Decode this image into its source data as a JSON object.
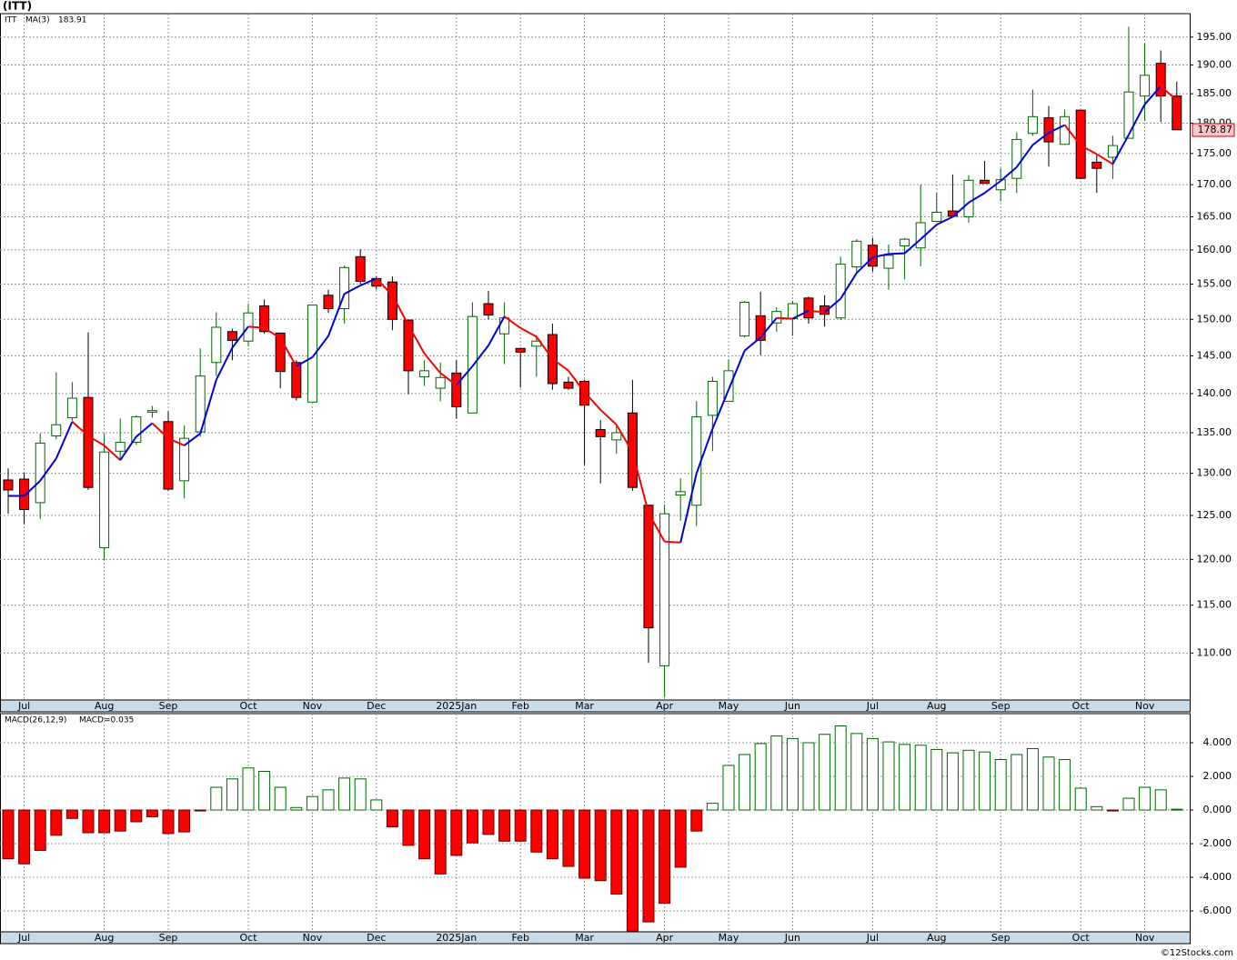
{
  "header": "(ITT)",
  "footer": "©12Stocks.com",
  "chart_data": [
    {
      "type": "candlestick",
      "title": "ITT",
      "log_scale": true,
      "grid": true,
      "categories": [
        null,
        "Jul",
        null,
        null,
        null,
        null,
        "Aug",
        null,
        null,
        null,
        "Sep",
        null,
        null,
        null,
        null,
        "Oct",
        null,
        null,
        null,
        "Nov",
        null,
        null,
        null,
        "Dec",
        null,
        null,
        null,
        null,
        "2025Jan",
        null,
        null,
        null,
        "Feb",
        null,
        null,
        null,
        "Mar",
        null,
        null,
        null,
        null,
        "Apr",
        null,
        null,
        null,
        "May",
        null,
        null,
        null,
        "Jun",
        null,
        null,
        null,
        null,
        "Jul",
        null,
        null,
        null,
        "Aug",
        null,
        null,
        null,
        "Sep",
        null,
        null,
        null,
        null,
        "Oct",
        null,
        null,
        null,
        "Nov",
        null,
        null
      ],
      "open": [
        129.2,
        129.3,
        126.5,
        134.6,
        136.9,
        139.5,
        121.3,
        132.7,
        133.8,
        137.6,
        136.4,
        129.1,
        135.1,
        144.1,
        148.3,
        147.0,
        151.9,
        148.1,
        144.1,
        138.9,
        153.4,
        151.5,
        159.0,
        155.8,
        155.3,
        149.9,
        142.2,
        140.7,
        142.7,
        137.5,
        152.2,
        148.0,
        146.0,
        146.3,
        147.9,
        141.5,
        141.6,
        135.4,
        134.1,
        137.5,
        126.2,
        108.7,
        127.4,
        126.2,
        137.2,
        139.0,
        147.7,
        150.5,
        149.5,
        150.1,
        153.0,
        151.9,
        150.2,
        157.5,
        160.7,
        157.3,
        160.6,
        160.3,
        164.3,
        165.9,
        165.0,
        170.7,
        169.2,
        171.0,
        178.3,
        180.9,
        176.5,
        182.2,
        173.6,
        174.4,
        177.5,
        184.6,
        190.3,
        184.6
      ],
      "high": [
        130.6,
        130.1,
        134.9,
        142.8,
        141.5,
        148.2,
        134.9,
        136.8,
        137.2,
        138.4,
        137.7,
        135.9,
        146.0,
        151.0,
        148.7,
        152.2,
        152.8,
        148.1,
        144.4,
        152.0,
        154.2,
        157.7,
        160.1,
        156.1,
        156.1,
        149.9,
        144.4,
        144.1,
        144.4,
        152.4,
        154.0,
        152.4,
        146.1,
        147.8,
        149.4,
        142.2,
        141.8,
        136.6,
        135.9,
        141.8,
        126.2,
        126.2,
        129.4,
        139.0,
        142.2,
        144.5,
        152.6,
        153.9,
        151.7,
        152.6,
        153.2,
        153.4,
        159.0,
        161.6,
        161.8,
        160.8,
        161.8,
        170.0,
        168.7,
        171.6,
        171.5,
        173.8,
        172.6,
        178.5,
        185.7,
        182.9,
        182.3,
        182.2,
        174.9,
        177.9,
        196.9,
        193.9,
        192.6,
        187.1
      ],
      "low": [
        125.2,
        124.0,
        124.6,
        134.2,
        136.5,
        128.0,
        119.9,
        131.6,
        133.5,
        136.9,
        127.9,
        127.0,
        134.5,
        142.3,
        144.4,
        146.3,
        148.0,
        140.7,
        139.1,
        138.9,
        150.9,
        149.4,
        155.0,
        154.2,
        148.5,
        139.9,
        141.0,
        139.0,
        136.8,
        137.5,
        150.0,
        143.9,
        140.8,
        142.2,
        140.5,
        140.5,
        131.0,
        128.8,
        132.4,
        127.9,
        109.0,
        105.6,
        124.4,
        123.8,
        132.7,
        139.0,
        147.5,
        145.1,
        148.3,
        147.7,
        149.4,
        149.0,
        149.9,
        156.5,
        156.8,
        154.2,
        155.7,
        157.6,
        164.3,
        165.1,
        164.1,
        170.2,
        167.4,
        168.7,
        177.9,
        172.9,
        176.4,
        170.9,
        168.7,
        170.9,
        177.5,
        180.4,
        180.2,
        178.9
      ],
      "close": [
        128.0,
        125.7,
        133.7,
        136.0,
        139.4,
        128.3,
        132.6,
        133.8,
        137.0,
        137.8,
        128.1,
        134.3,
        142.3,
        148.9,
        147.1,
        150.9,
        148.3,
        142.9,
        139.5,
        152.0,
        151.5,
        157.4,
        155.4,
        154.7,
        150.0,
        143.0,
        143.0,
        142.1,
        138.3,
        150.4,
        150.6,
        150.2,
        145.5,
        147.0,
        141.3,
        140.7,
        138.5,
        134.5,
        135.0,
        128.3,
        112.6,
        125.2,
        127.8,
        137.0,
        141.6,
        143.0,
        152.4,
        147.1,
        151.1,
        152.2,
        150.2,
        150.7,
        157.9,
        161.3,
        157.6,
        159.2,
        161.6,
        164.1,
        165.7,
        165.1,
        170.7,
        170.2,
        170.8,
        177.3,
        181.1,
        176.9,
        181.1,
        171.0,
        172.6,
        176.3,
        185.3,
        188.2,
        184.6,
        178.9
      ],
      "up_color": "#ffffff",
      "down_color": "#ff0000",
      "candle_edge": "#006400",
      "ma": {
        "name": "MA(3)",
        "last_value": 183.91,
        "up_color": "#0000dd",
        "down_color": "#ff0000",
        "values": [
          127.3,
          127.3,
          129.1,
          131.8,
          136.4,
          134.6,
          133.4,
          131.6,
          134.5,
          136.2,
          134.3,
          133.4,
          134.9,
          141.8,
          146.1,
          149.0,
          148.8,
          147.4,
          143.6,
          144.8,
          147.7,
          153.6,
          154.8,
          155.8,
          153.4,
          149.2,
          145.3,
          142.7,
          141.1,
          143.6,
          146.4,
          150.4,
          148.8,
          147.6,
          144.6,
          143.0,
          140.2,
          137.9,
          136.0,
          132.6,
          125.3,
          122.0,
          121.9,
          130.0,
          135.5,
          140.5,
          145.7,
          147.5,
          150.2,
          150.1,
          151.2,
          151.0,
          152.9,
          156.6,
          158.9,
          159.4,
          159.5,
          161.6,
          163.8,
          165.0,
          167.2,
          168.7,
          170.6,
          172.8,
          176.4,
          178.4,
          179.7,
          176.3,
          174.9,
          173.3,
          178.1,
          183.2,
          186.3,
          183.9
        ]
      },
      "last_price": 178.87,
      "ylim": [
        105.3,
        199.3
      ],
      "yticks": [
        {
          "value": 110,
          "label": "110.00"
        },
        {
          "value": 115,
          "label": "115.00"
        },
        {
          "value": 120,
          "label": "120.00"
        },
        {
          "value": 125,
          "label": "125.00"
        },
        {
          "value": 130,
          "label": "130.00"
        },
        {
          "value": 135,
          "label": "135.00"
        },
        {
          "value": 140,
          "label": "140.00"
        },
        {
          "value": 145,
          "label": "145.00"
        },
        {
          "value": 150,
          "label": "150.00"
        },
        {
          "value": 155,
          "label": "155.00"
        },
        {
          "value": 160,
          "label": "160.00"
        },
        {
          "value": 165,
          "label": "165.00"
        },
        {
          "value": 170,
          "label": "170.00"
        },
        {
          "value": 175,
          "label": "175.00"
        },
        {
          "value": 180,
          "label": "180.00"
        },
        {
          "value": 185,
          "label": "185.00"
        },
        {
          "value": 190,
          "label": "190.00"
        },
        {
          "value": 195,
          "label": "195.00"
        }
      ]
    },
    {
      "type": "bar",
      "title": "MACD(26,12,9)",
      "subtitle": "MACD=0.035",
      "grid": true,
      "categories": [
        null,
        "Jul",
        null,
        null,
        null,
        null,
        "Aug",
        null,
        null,
        null,
        "Sep",
        null,
        null,
        null,
        null,
        "Oct",
        null,
        null,
        null,
        "Nov",
        null,
        null,
        null,
        "Dec",
        null,
        null,
        null,
        null,
        "2025Jan",
        null,
        null,
        null,
        "Feb",
        null,
        null,
        null,
        "Mar",
        null,
        null,
        null,
        null,
        "Apr",
        null,
        null,
        null,
        "May",
        null,
        null,
        null,
        "Jun",
        null,
        null,
        null,
        null,
        "Jul",
        null,
        null,
        null,
        "Aug",
        null,
        null,
        null,
        "Sep",
        null,
        null,
        null,
        null,
        "Oct",
        null,
        null,
        null,
        "Nov",
        null,
        null
      ],
      "values": [
        -2.9,
        -3.2,
        -2.4,
        -1.5,
        -0.5,
        -1.35,
        -1.35,
        -1.25,
        -0.7,
        -0.4,
        -1.4,
        -1.3,
        -0.05,
        1.35,
        1.85,
        2.5,
        2.3,
        1.35,
        0.15,
        0.8,
        1.2,
        1.9,
        1.85,
        0.6,
        -1.0,
        -2.1,
        -2.9,
        -3.8,
        -2.7,
        -1.95,
        -1.45,
        -1.85,
        -1.85,
        -2.5,
        -2.9,
        -3.35,
        -4.05,
        -4.2,
        -5.0,
        -7.2,
        -6.65,
        -5.55,
        -3.4,
        -1.25,
        0.4,
        2.65,
        3.3,
        3.95,
        4.4,
        4.25,
        4.0,
        4.5,
        5.0,
        4.55,
        4.25,
        4.05,
        3.9,
        3.85,
        3.6,
        3.4,
        3.55,
        3.45,
        3.0,
        3.3,
        3.65,
        3.15,
        3.0,
        1.3,
        0.2,
        -0.05,
        0.7,
        1.35,
        1.2,
        0.05
      ],
      "up_color": "#ffffff",
      "up_edge": "#006400",
      "down_color": "#ff0000",
      "ylim": [
        -7.24,
        5.73
      ],
      "yticks": [
        {
          "value": -6,
          "label": "-6.000"
        },
        {
          "value": -4,
          "label": "-4.000"
        },
        {
          "value": -2,
          "label": "-2.000"
        },
        {
          "value": 0,
          "label": "0.000"
        },
        {
          "value": 2,
          "label": "2.000"
        },
        {
          "value": 4,
          "label": "4.000"
        }
      ]
    }
  ]
}
